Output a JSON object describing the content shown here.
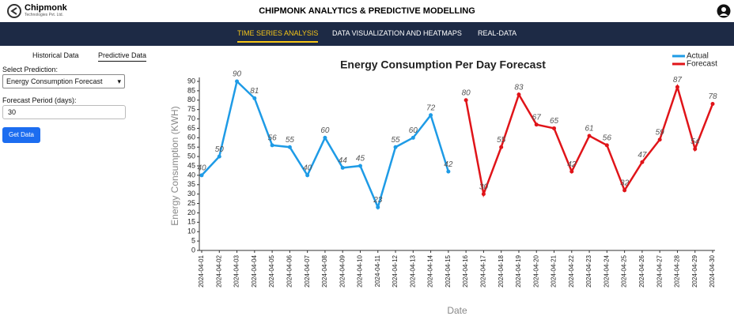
{
  "header": {
    "logo": "Chipmonk",
    "logo_sub": "Technologies Pvt. Ltd.",
    "title": "CHIPMONK ANALYTICS & PREDICTIVE MODELLING"
  },
  "nav": [
    "TIME SERIES ANALYSIS",
    "DATA VISUALIZATION AND HEATMAPS",
    "REAL-DATA"
  ],
  "sidebar": {
    "tabs": [
      "Historical Data",
      "Predictive Data"
    ],
    "select_label": "Select Prediction:",
    "select_value": "Energy Consumption Forecast",
    "period_label": "Forecast Period (days):",
    "period_value": "30",
    "button": "Get Data"
  },
  "chart_data": {
    "type": "line",
    "title": "Energy Consumption Per Day Forecast",
    "x_label": "Date",
    "y_label": "Energy Consumption (KWH)",
    "categories": [
      "2024-04-01",
      "2024-04-02",
      "2024-04-03",
      "2024-04-04",
      "2024-04-05",
      "2024-04-06",
      "2024-04-07",
      "2024-04-08",
      "2024-04-09",
      "2024-04-10",
      "2024-04-11",
      "2024-04-12",
      "2024-04-13",
      "2024-04-14",
      "2024-04-15",
      "2024-04-16",
      "2024-04-17",
      "2024-04-18",
      "2024-04-19",
      "2024-04-20",
      "2024-04-21",
      "2024-04-22",
      "2024-04-23",
      "2024-04-24",
      "2024-04-25",
      "2024-04-26",
      "2024-04-27",
      "2024-04-28",
      "2024-04-29",
      "2024-04-30"
    ],
    "series": [
      {
        "name": "Actual",
        "color": "#1e9be6",
        "values": [
          40,
          50,
          90,
          81,
          56,
          55,
          40,
          60,
          44,
          45,
          23,
          55,
          60,
          72,
          42,
          null,
          null,
          null,
          null,
          null,
          null,
          null,
          null,
          null,
          null,
          null,
          null,
          null,
          null,
          null
        ]
      },
      {
        "name": "Forecast",
        "color": "#e01419",
        "values": [
          null,
          null,
          null,
          null,
          null,
          null,
          null,
          null,
          null,
          null,
          null,
          null,
          null,
          null,
          null,
          80,
          30,
          55,
          83,
          67,
          65,
          42,
          61,
          56,
          32,
          47,
          59,
          87,
          54,
          78
        ]
      }
    ],
    "ylim": [
      0,
      90
    ],
    "yticks": [
      0,
      5,
      10,
      15,
      20,
      25,
      30,
      35,
      40,
      45,
      50,
      55,
      60,
      65,
      70,
      75,
      80,
      85,
      90
    ],
    "legend": "top-right"
  }
}
